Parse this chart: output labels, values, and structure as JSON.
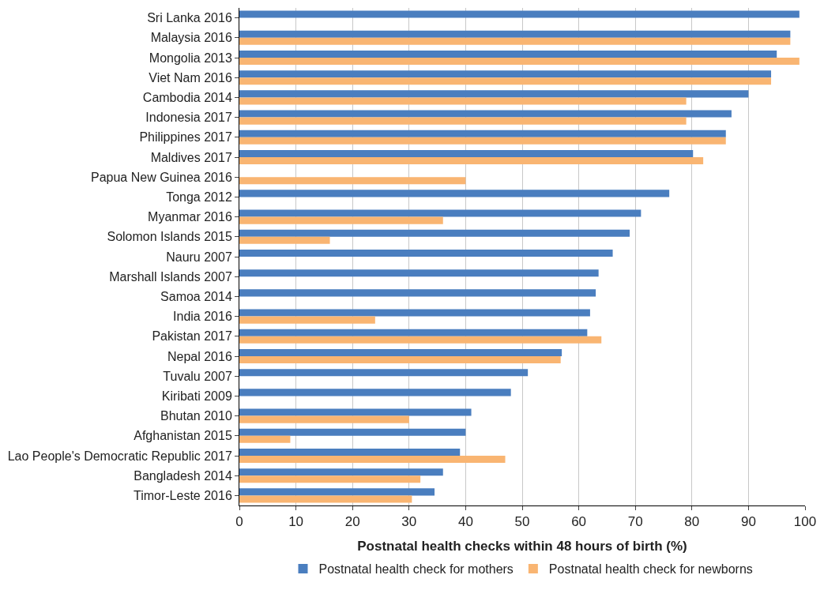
{
  "chart_data": {
    "type": "bar",
    "orientation": "horizontal",
    "xlabel": "Postnatal health checks within 48 hours of birth (%)",
    "categories": [
      "Sri Lanka 2016",
      "Malaysia 2016",
      "Mongolia 2013",
      "Viet Nam 2016",
      "Cambodia 2014",
      "Indonesia 2017",
      "Philippines 2017",
      "Maldives 2017",
      "Papua New Guinea 2016",
      "Tonga 2012",
      "Myanmar 2016",
      "Solomon Islands 2015",
      "Nauru 2007",
      "Marshall Islands 2007",
      "Samoa 2014",
      "India 2016",
      "Pakistan 2017",
      "Nepal 2016",
      "Tuvalu 2007",
      "Kiribati 2009",
      "Bhutan 2010",
      "Afghanistan 2015",
      "Lao People's Democratic Republic 2017",
      "Bangladesh 2014",
      "Timor-Leste 2016"
    ],
    "series": [
      {
        "name": "Postnatal health check for mothers",
        "color": "#4a7ebf",
        "values": [
          99,
          97.4,
          95,
          94,
          90,
          87,
          86,
          80.2,
          null,
          76,
          71,
          69,
          66,
          63.5,
          63,
          62,
          61.5,
          57,
          51,
          48,
          41,
          40,
          39,
          36,
          34.5
        ]
      },
      {
        "name": "Postnatal health check for newborns",
        "color": "#f9b572",
        "values": [
          null,
          97.4,
          99,
          94,
          79,
          79,
          86,
          82,
          40,
          null,
          36,
          16,
          null,
          null,
          null,
          24,
          64,
          56.8,
          null,
          null,
          30,
          9,
          47,
          32,
          30.5
        ]
      }
    ],
    "xlim": [
      0,
      100
    ],
    "xticks": [
      0,
      10,
      20,
      30,
      40,
      50,
      60,
      70,
      80,
      90,
      100
    ],
    "grid": "x",
    "legend": "bottom"
  }
}
